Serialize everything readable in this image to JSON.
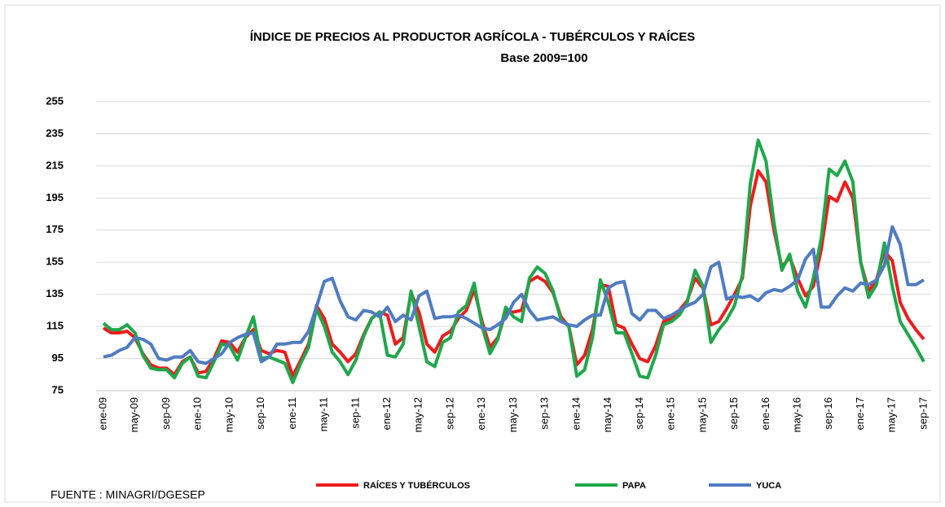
{
  "chart_data": {
    "type": "line",
    "title": "ÍNDICE DE PRECIOS AL PRODUCTOR AGRÍCOLA - TUBÉRCULOS Y RAÍCES",
    "subtitle": "Base 2009=100",
    "source": "FUENTE : MINAGRI/DGESEP",
    "categories": [
      "ene-09",
      null,
      null,
      null,
      "may-09",
      null,
      null,
      null,
      "sep-09",
      null,
      null,
      null,
      "ene-10",
      null,
      null,
      null,
      "may-10",
      null,
      null,
      null,
      "sep-10",
      null,
      null,
      null,
      "ene-11",
      null,
      null,
      null,
      "may-11",
      null,
      null,
      null,
      "sep-11",
      null,
      null,
      null,
      "ene-12",
      null,
      null,
      null,
      "may-12",
      null,
      null,
      null,
      "sep-12",
      null,
      null,
      null,
      "ene-13",
      null,
      null,
      null,
      "may-13",
      null,
      null,
      null,
      "sep-13",
      null,
      null,
      null,
      "ene-14",
      null,
      null,
      null,
      "may-14",
      null,
      null,
      null,
      "sep-14",
      null,
      null,
      null,
      "ene-15",
      null,
      null,
      null,
      "may-15",
      null,
      null,
      null,
      "sep-15",
      null,
      null,
      null,
      "ene-16",
      null,
      null,
      null,
      "may-16",
      null,
      null,
      null,
      "sep-16",
      null,
      null,
      null,
      "ene-17",
      null,
      null,
      null,
      "may-17",
      null,
      null,
      null,
      "sep-17"
    ],
    "series": [
      {
        "name": "RAÍCES Y TUBÉRCULOS",
        "color": "#ee1c1c",
        "values": [
          114,
          111,
          111,
          112,
          108,
          98,
          91,
          89,
          89,
          85,
          93,
          96,
          86,
          87,
          95,
          106,
          105,
          99,
          108,
          113,
          100,
          98,
          100,
          99,
          84,
          94,
          104,
          128,
          120,
          104,
          99,
          93,
          98,
          110,
          120,
          124,
          122,
          104,
          108,
          136,
          124,
          104,
          99,
          109,
          112,
          120,
          125,
          138,
          118,
          102,
          108,
          124,
          124,
          125,
          143,
          146,
          143,
          136,
          121,
          115,
          91,
          97,
          113,
          141,
          140,
          116,
          114,
          104,
          95,
          93,
          103,
          118,
          120,
          125,
          131,
          145,
          139,
          116,
          118,
          126,
          135,
          145,
          190,
          212,
          205,
          175,
          152,
          158,
          145,
          134,
          140,
          163,
          196,
          193,
          205,
          195,
          155,
          137,
          144,
          162,
          156,
          130,
          120,
          113,
          107
        ]
      },
      {
        "name": "PAPA",
        "color": "#1ea84b",
        "values": [
          117,
          113,
          113,
          116,
          111,
          97,
          89,
          88,
          88,
          83,
          92,
          96,
          84,
          83,
          93,
          104,
          103,
          94,
          108,
          121,
          95,
          96,
          94,
          92,
          80,
          92,
          102,
          126,
          115,
          99,
          93,
          85,
          94,
          109,
          120,
          124,
          97,
          96,
          104,
          137,
          115,
          93,
          90,
          105,
          108,
          124,
          128,
          142,
          115,
          98,
          107,
          127,
          121,
          118,
          145,
          152,
          148,
          137,
          119,
          115,
          84,
          88,
          108,
          144,
          130,
          111,
          111,
          98,
          84,
          83,
          97,
          116,
          118,
          122,
          130,
          150,
          140,
          105,
          113,
          119,
          128,
          147,
          204,
          231,
          218,
          180,
          150,
          160,
          137,
          127,
          145,
          170,
          213,
          209,
          218,
          205,
          155,
          133,
          141,
          167,
          140,
          118,
          110,
          102,
          93
        ]
      },
      {
        "name": "YUCA",
        "color": "#4f7cc2",
        "values": [
          96,
          97,
          100,
          102,
          108,
          107,
          104,
          95,
          94,
          96,
          96,
          100,
          93,
          92,
          95,
          98,
          105,
          108,
          110,
          111,
          93,
          96,
          104,
          104,
          105,
          105,
          112,
          127,
          143,
          145,
          131,
          121,
          119,
          125,
          124,
          121,
          127,
          118,
          122,
          119,
          134,
          137,
          120,
          121,
          121,
          122,
          120,
          117,
          114,
          113,
          116,
          120,
          130,
          135,
          125,
          119,
          120,
          121,
          118,
          116,
          115,
          119,
          122,
          122,
          139,
          142,
          143,
          123,
          119,
          125,
          125,
          120,
          122,
          125,
          128,
          130,
          135,
          152,
          155,
          132,
          134,
          133,
          134,
          131,
          136,
          138,
          137,
          140,
          144,
          157,
          163,
          127,
          127,
          134,
          139,
          137,
          142,
          141,
          144,
          153,
          177,
          166,
          141,
          141,
          144
        ]
      }
    ],
    "ylim": [
      75,
      255
    ],
    "yticks": [
      75,
      95,
      115,
      135,
      155,
      175,
      195,
      215,
      235,
      255
    ],
    "grid": true
  }
}
